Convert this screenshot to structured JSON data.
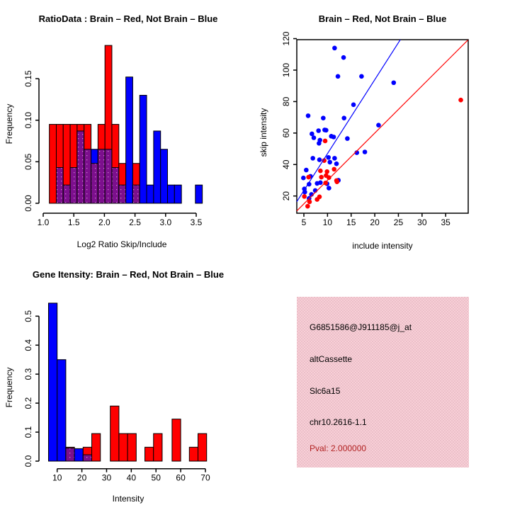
{
  "palette": {
    "red": "#FF0000",
    "blue": "#0000FF",
    "purple": "#7C0F8D",
    "dark_red": "#B22222",
    "pink_light": "#F8CFD7",
    "pink_dark": "#EBC0C9",
    "background": "#FFFFFF"
  },
  "chart_data": [
    {
      "id": "ratio_histogram",
      "type": "bar",
      "title": "RatioData : Brain – Red, Not Brain – Blue",
      "xlabel": "Log2 Ratio Skip/Include",
      "ylabel": "Frequency",
      "xticks": [
        "1.0",
        "1.5",
        "2.0",
        "2.5",
        "3.0",
        "3.5"
      ],
      "yticks": [
        "0.00",
        "0.05",
        "0.10",
        "0.15"
      ],
      "xlim": [
        1.0,
        3.6
      ],
      "ylim": [
        0,
        0.19
      ],
      "grid": false,
      "bins": [
        {
          "x0": 1.1,
          "x1": 1.214,
          "red": 0.095,
          "blue": 0
        },
        {
          "x0": 1.214,
          "x1": 1.327,
          "red": 0.095,
          "blue": 0.043
        },
        {
          "x0": 1.327,
          "x1": 1.441,
          "red": 0.095,
          "blue": 0.022
        },
        {
          "x0": 1.441,
          "x1": 1.554,
          "red": 0.095,
          "blue": 0.043
        },
        {
          "x0": 1.554,
          "x1": 1.668,
          "red": 0.095,
          "blue": 0.087
        },
        {
          "x0": 1.668,
          "x1": 1.782,
          "red": 0.095,
          "blue": 0.065
        },
        {
          "x0": 1.782,
          "x1": 1.895,
          "red": 0.048,
          "blue": 0.065
        },
        {
          "x0": 1.895,
          "x1": 2.009,
          "red": 0.095,
          "blue": 0.065
        },
        {
          "x0": 2.009,
          "x1": 2.122,
          "red": 0.19,
          "blue": 0.065
        },
        {
          "x0": 2.122,
          "x1": 2.236,
          "red": 0.095,
          "blue": 0.043
        },
        {
          "x0": 2.236,
          "x1": 2.35,
          "red": 0.048,
          "blue": 0.022
        },
        {
          "x0": 2.35,
          "x1": 2.463,
          "red": 0,
          "blue": 0.152
        },
        {
          "x0": 2.463,
          "x1": 2.577,
          "red": 0.048,
          "blue": 0.022
        },
        {
          "x0": 2.577,
          "x1": 2.69,
          "red": 0,
          "blue": 0.13
        },
        {
          "x0": 2.69,
          "x1": 2.804,
          "red": 0,
          "blue": 0.022
        },
        {
          "x0": 2.804,
          "x1": 2.918,
          "red": 0,
          "blue": 0.087
        },
        {
          "x0": 2.918,
          "x1": 3.031,
          "red": 0,
          "blue": 0.065
        },
        {
          "x0": 3.031,
          "x1": 3.145,
          "red": 0,
          "blue": 0.022
        },
        {
          "x0": 3.145,
          "x1": 3.259,
          "red": 0,
          "blue": 0.022
        },
        {
          "x0": 3.486,
          "x1": 3.6,
          "red": 0,
          "blue": 0.022
        }
      ]
    },
    {
      "id": "intensity_scatter",
      "type": "scatter",
      "title": "Brain – Red, Not Brain – Blue",
      "xlabel": "include intensity",
      "ylabel": "skip intensity",
      "xticks": [
        "5",
        "10",
        "15",
        "20",
        "25",
        "30",
        "35"
      ],
      "yticks": [
        "20",
        "40",
        "60",
        "80",
        "100",
        "120"
      ],
      "xlim": [
        3.5,
        39.8
      ],
      "ylim": [
        9,
        119.3
      ],
      "grid": false,
      "series": [
        {
          "name": "Not Brain",
          "color_key": "blue",
          "points": [
            [
              11.5,
              114
            ],
            [
              13.4,
              108
            ],
            [
              12.2,
              96
            ],
            [
              17.2,
              96
            ],
            [
              24,
              92
            ],
            [
              15.5,
              78
            ],
            [
              5.9,
              71
            ],
            [
              9.1,
              69.5
            ],
            [
              13.5,
              69.5
            ],
            [
              20.8,
              65
            ],
            [
              9.4,
              62
            ],
            [
              8.1,
              61.5
            ],
            [
              9.7,
              61.8
            ],
            [
              6.7,
              59.5
            ],
            [
              10.8,
              58
            ],
            [
              11.3,
              57.5
            ],
            [
              14.2,
              56.5
            ],
            [
              7.1,
              57
            ],
            [
              8.4,
              55.5
            ],
            [
              8.2,
              53.5
            ],
            [
              16.2,
              47.5
            ],
            [
              17.9,
              48
            ],
            [
              10.2,
              44.5
            ],
            [
              6.9,
              44
            ],
            [
              11.5,
              44
            ],
            [
              8.3,
              43
            ],
            [
              11.9,
              40.5
            ],
            [
              10.5,
              41.5
            ],
            [
              5.5,
              36.5
            ],
            [
              4.9,
              31.5
            ],
            [
              6.4,
              32.5
            ],
            [
              8.5,
              28.5
            ],
            [
              9.9,
              27.8
            ],
            [
              7.8,
              28
            ],
            [
              6.1,
              27.5
            ],
            [
              10.3,
              25
            ],
            [
              5.1,
              24.5
            ],
            [
              7.4,
              23.5
            ],
            [
              5.2,
              22.5
            ],
            [
              6.6,
              21
            ],
            [
              6.1,
              18.5
            ],
            [
              12.3,
              30
            ]
          ]
        },
        {
          "name": "Brain",
          "color_key": "red",
          "points": [
            [
              38.2,
              81
            ],
            [
              9.5,
              55
            ],
            [
              9.3,
              42.5
            ],
            [
              11.4,
              37
            ],
            [
              8.5,
              36
            ],
            [
              9.9,
              35.5
            ],
            [
              9.7,
              33
            ],
            [
              6,
              32
            ],
            [
              8.7,
              32
            ],
            [
              10.3,
              31.7
            ],
            [
              11.9,
              29.8
            ],
            [
              12,
              29
            ],
            [
              9.6,
              28.3
            ],
            [
              8.3,
              19.5
            ],
            [
              5.1,
              19.7
            ],
            [
              7.8,
              17.8
            ],
            [
              6.2,
              16.3
            ],
            [
              5.8,
              13.5
            ]
          ]
        }
      ],
      "lines": [
        {
          "color_key": "blue",
          "x1": 3.5,
          "y1": 16.4,
          "x2": 25.4,
          "y2": 119.3
        },
        {
          "color_key": "red",
          "x1": 3.5,
          "y1": 10.5,
          "x2": 39.7,
          "y2": 119.1
        }
      ]
    },
    {
      "id": "gene_intensity_histogram",
      "type": "bar",
      "title": "Gene Itensity: Brain – Red, Not Brain – Blue",
      "xlabel": "Intensity",
      "ylabel": "Frequency",
      "xticks": [
        "10",
        "20",
        "30",
        "40",
        "50",
        "60",
        "70"
      ],
      "yticks": [
        "0.0",
        "0.1",
        "0.2",
        "0.3",
        "0.4",
        "0.5"
      ],
      "xlim": [
        5,
        72
      ],
      "ylim": [
        0,
        0.56
      ],
      "grid": false,
      "bins": [
        {
          "x0": 6.5,
          "x1": 10,
          "red": 0,
          "blue": 0.545
        },
        {
          "x0": 10,
          "x1": 13.5,
          "red": 0,
          "blue": 0.35
        },
        {
          "x0": 13.5,
          "x1": 17,
          "red": 0.048,
          "blue": 0.045
        },
        {
          "x0": 17,
          "x1": 20.5,
          "red": 0,
          "blue": 0.043
        },
        {
          "x0": 20.5,
          "x1": 24,
          "red": 0.048,
          "blue": 0.022
        },
        {
          "x0": 24,
          "x1": 27.5,
          "red": 0.095,
          "blue": 0
        },
        {
          "x0": 31.5,
          "x1": 35,
          "red": 0.19,
          "blue": 0
        },
        {
          "x0": 35,
          "x1": 38.5,
          "red": 0.095,
          "blue": 0
        },
        {
          "x0": 38.5,
          "x1": 42,
          "red": 0.095,
          "blue": 0
        },
        {
          "x0": 45.5,
          "x1": 49,
          "red": 0.048,
          "blue": 0
        },
        {
          "x0": 49,
          "x1": 52.5,
          "red": 0.095,
          "blue": 0
        },
        {
          "x0": 56.5,
          "x1": 60,
          "red": 0.145,
          "blue": 0
        },
        {
          "x0": 63.5,
          "x1": 67,
          "red": 0.048,
          "blue": 0
        },
        {
          "x0": 67,
          "x1": 70.5,
          "red": 0.095,
          "blue": 0
        }
      ]
    }
  ],
  "info_panel": {
    "lines": [
      {
        "text": "G6851586@J911185@j_at",
        "color": "#000000"
      },
      {
        "text": "altCassette",
        "color": "#000000"
      },
      {
        "text": "Slc6a15",
        "color": "#000000"
      },
      {
        "text": "chr10.2616-1.1",
        "color": "#000000"
      },
      {
        "text": "Pval: 2.000000",
        "color": "#B22222"
      }
    ]
  }
}
